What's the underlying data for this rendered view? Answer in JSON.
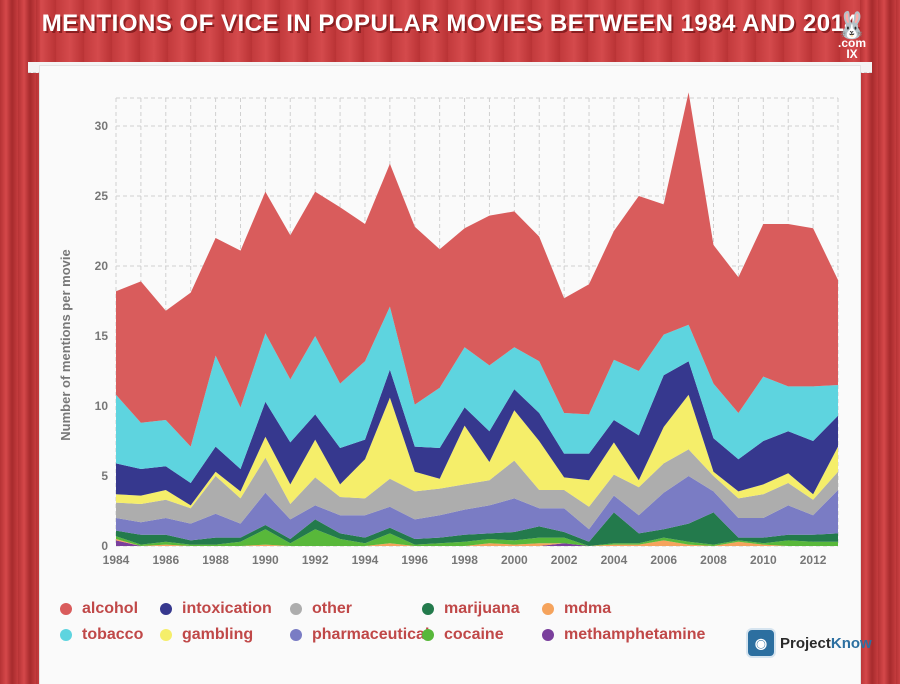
{
  "header": {
    "title": "MENTIONS OF VICE IN POPULAR MOVIES BETWEEN 1984 AND 2014"
  },
  "logo": {
    "glyph": "🐰",
    "line1": ".com",
    "line2": "IX"
  },
  "brand": {
    "project": "Project",
    "know": "Know",
    "icon": "pk"
  },
  "colors": {
    "alcohol": "#d95c5c",
    "intoxication": "#36388e",
    "other": "#adadad",
    "marijuana": "#237a4c",
    "mdma": "#f5a35c",
    "tobacco": "#5ed4df",
    "gambling": "#f5ee6a",
    "pharmaceutical": "#7a7cc4",
    "cocaine": "#58b83a",
    "methamphetamine": "#7a3f9c"
  },
  "chart_data": {
    "type": "area",
    "stacked": true,
    "title": "MENTIONS OF VICE IN POPULAR MOVIES BETWEEN 1984 AND 2014",
    "xlabel": "",
    "ylabel": "Number of mentions per movie",
    "xlim": [
      1984,
      2013
    ],
    "ylim": [
      0,
      32
    ],
    "x_ticks": [
      "1984",
      "1986",
      "1988",
      "1990",
      "1992",
      "1994",
      "1996",
      "1998",
      "2000",
      "2002",
      "2004",
      "2006",
      "2008",
      "2010",
      "2012"
    ],
    "y_ticks": [
      "0",
      "5",
      "10",
      "15",
      "20",
      "25",
      "30"
    ],
    "grid": true,
    "x": [
      1984,
      1985,
      1986,
      1987,
      1988,
      1989,
      1990,
      1991,
      1992,
      1993,
      1994,
      1995,
      1996,
      1997,
      1998,
      1999,
      2000,
      2001,
      2002,
      2003,
      2004,
      2005,
      2006,
      2007,
      2008,
      2009,
      2010,
      2011,
      2012,
      2013
    ],
    "series": [
      {
        "name": "methamphetamine",
        "values": [
          0.4,
          0,
          0,
          0,
          0,
          0,
          0,
          0,
          0,
          0,
          0,
          0,
          0,
          0,
          0,
          0,
          0,
          0,
          0.2,
          0,
          0,
          0,
          0,
          0,
          0,
          0,
          0,
          0,
          0,
          0
        ]
      },
      {
        "name": "mdma",
        "values": [
          0.1,
          0,
          0.1,
          0,
          0,
          0,
          0.1,
          0,
          0,
          0,
          0,
          0.2,
          0,
          0,
          0,
          0.2,
          0.1,
          0.2,
          0,
          0,
          0.1,
          0.1,
          0.4,
          0.1,
          0,
          0.3,
          0.1,
          0,
          0,
          0
        ]
      },
      {
        "name": "cocaine",
        "values": [
          0.2,
          0.1,
          0.2,
          0.1,
          0.1,
          0.3,
          1.1,
          0.2,
          1.2,
          0.5,
          0.2,
          0.7,
          0.1,
          0.2,
          0.3,
          0.3,
          0.3,
          0.4,
          0.4,
          0,
          0.1,
          0.1,
          0.2,
          0.2,
          0.1,
          0.1,
          0.1,
          0.4,
          0.3,
          0.3
        ]
      },
      {
        "name": "marijuana",
        "values": [
          0.4,
          0.7,
          0.5,
          0.3,
          0.5,
          0.3,
          0.3,
          0.3,
          0.7,
          0.4,
          0.4,
          0.4,
          0.4,
          0.4,
          0.5,
          0.4,
          0.6,
          0.8,
          0.4,
          0.3,
          2.2,
          0.7,
          0.6,
          1.3,
          2.3,
          0.2,
          0.4,
          0.4,
          0.5,
          0.6
        ]
      },
      {
        "name": "pharmaceutical",
        "values": [
          0.9,
          0.9,
          1.2,
          1.2,
          1.7,
          1.0,
          2.3,
          1.4,
          1.0,
          1.3,
          1.6,
          1.5,
          1.4,
          1.6,
          1.8,
          2.0,
          2.4,
          1.3,
          1.7,
          0.9,
          1.2,
          1.3,
          2.6,
          3.4,
          1.5,
          1.4,
          1.4,
          2.1,
          1.4,
          3.1
        ]
      },
      {
        "name": "other",
        "values": [
          1.1,
          1.3,
          1.3,
          1.1,
          2.7,
          1.8,
          2.5,
          1.1,
          2.0,
          1.3,
          1.2,
          2.0,
          2.0,
          1.9,
          1.8,
          1.8,
          2.7,
          1.3,
          1.3,
          1.6,
          1.5,
          2.0,
          2.1,
          1.9,
          1.1,
          1.4,
          1.7,
          1.6,
          1.1,
          1.3
        ]
      },
      {
        "name": "gambling",
        "values": [
          0.6,
          0.6,
          0.7,
          0.2,
          0.3,
          0.5,
          1.5,
          1.4,
          2.7,
          0.9,
          2.8,
          5.8,
          1.4,
          0.7,
          4.2,
          1.3,
          3.6,
          3.5,
          0.9,
          1.9,
          2.3,
          0.5,
          2.6,
          3.9,
          0.3,
          0.5,
          0.7,
          0.7,
          0.4,
          1.8
        ]
      },
      {
        "name": "intoxication",
        "values": [
          2.2,
          1.9,
          1.7,
          1.6,
          1.8,
          1.6,
          2.5,
          3.0,
          1.8,
          2.6,
          1.4,
          2.0,
          1.8,
          2.2,
          1.3,
          2.2,
          1.5,
          2.0,
          1.7,
          1.9,
          1.6,
          3.2,
          3.7,
          2.4,
          2.4,
          2.3,
          3.1,
          3.0,
          3.8,
          2.2
        ]
      },
      {
        "name": "tobacco",
        "values": [
          4.9,
          3.3,
          3.3,
          2.6,
          6.5,
          4.4,
          4.9,
          4.5,
          5.6,
          4.6,
          5.6,
          4.5,
          3.0,
          4.3,
          4.3,
          4.7,
          3.0,
          3.7,
          2.9,
          2.8,
          4.3,
          4.6,
          2.9,
          2.6,
          3.9,
          3.3,
          4.6,
          3.2,
          3.9,
          2.2
        ]
      },
      {
        "name": "alcohol",
        "values": [
          7.4,
          10.1,
          7.8,
          11.0,
          8.4,
          11.2,
          10.1,
          10.3,
          10.3,
          12.6,
          9.8,
          10.2,
          12.7,
          9.9,
          8.5,
          10.7,
          9.7,
          8.9,
          8.2,
          9.3,
          9.2,
          12.5,
          9.3,
          16.6,
          9.9,
          9.7,
          10.9,
          11.6,
          11.3,
          7.5
        ]
      }
    ],
    "legend": {
      "placement": "bottom",
      "order": [
        "alcohol",
        "intoxication",
        "other",
        "marijuana",
        "mdma",
        "tobacco",
        "gambling",
        "pharmaceutical",
        "cocaine",
        "methamphetamine"
      ]
    }
  }
}
